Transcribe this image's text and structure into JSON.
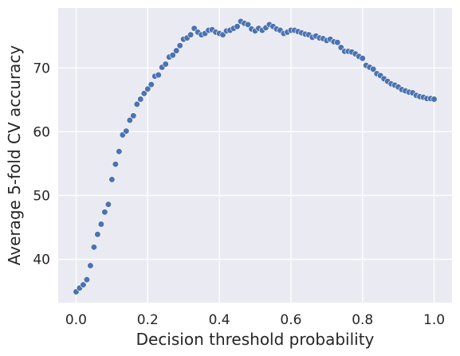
{
  "chart_data": {
    "type": "scatter",
    "title": "",
    "xlabel": "Decision threshold probability",
    "ylabel": "Average 5-fold CV accuracy",
    "xlim": [
      -0.05,
      1.05
    ],
    "ylim": [
      33.2,
      79.4
    ],
    "xticks": [
      0.0,
      0.2,
      0.4,
      0.6,
      0.8,
      1.0
    ],
    "xtick_labels": [
      "0.0",
      "0.2",
      "0.4",
      "0.6",
      "0.8",
      "1.0"
    ],
    "yticks": [
      40,
      50,
      60,
      70
    ],
    "ytick_labels": [
      "40",
      "50",
      "60",
      "70"
    ],
    "grid": true,
    "legend": "none",
    "colors": {
      "background": "#eaeaf2",
      "grid": "#ffffff",
      "marker": "#4c72b0"
    },
    "x": [
      0.0,
      0.01,
      0.02,
      0.03,
      0.04,
      0.05,
      0.06,
      0.07,
      0.08,
      0.09,
      0.1,
      0.11,
      0.12,
      0.13,
      0.14,
      0.15,
      0.16,
      0.17,
      0.18,
      0.19,
      0.2,
      0.21,
      0.22,
      0.23,
      0.24,
      0.25,
      0.26,
      0.27,
      0.28,
      0.29,
      0.3,
      0.31,
      0.32,
      0.33,
      0.34,
      0.35,
      0.36,
      0.37,
      0.38,
      0.39,
      0.4,
      0.41,
      0.42,
      0.43,
      0.44,
      0.45,
      0.46,
      0.47,
      0.48,
      0.49,
      0.5,
      0.51,
      0.52,
      0.53,
      0.54,
      0.55,
      0.56,
      0.57,
      0.58,
      0.59,
      0.6,
      0.61,
      0.62,
      0.63,
      0.64,
      0.65,
      0.66,
      0.67,
      0.68,
      0.69,
      0.7,
      0.71,
      0.72,
      0.73,
      0.74,
      0.75,
      0.76,
      0.77,
      0.78,
      0.79,
      0.8,
      0.81,
      0.82,
      0.83,
      0.84,
      0.85,
      0.86,
      0.87,
      0.88,
      0.89,
      0.9,
      0.91,
      0.92,
      0.93,
      0.94,
      0.95,
      0.96,
      0.97,
      0.98,
      0.99,
      1.0
    ],
    "y": [
      34.9,
      35.5,
      36.0,
      36.8,
      39.0,
      41.9,
      43.9,
      45.5,
      47.4,
      48.6,
      52.5,
      54.9,
      56.9,
      59.5,
      60.1,
      61.8,
      62.5,
      64.3,
      65.1,
      66.0,
      66.7,
      67.4,
      68.7,
      68.9,
      70.1,
      70.6,
      71.7,
      72.0,
      72.7,
      73.5,
      74.5,
      74.7,
      75.2,
      76.2,
      75.6,
      75.2,
      75.4,
      75.9,
      76.0,
      75.6,
      75.4,
      75.2,
      75.8,
      75.9,
      76.2,
      76.5,
      77.3,
      77.0,
      76.8,
      76.1,
      75.8,
      76.2,
      75.9,
      76.3,
      76.8,
      76.5,
      76.1,
      75.9,
      75.4,
      75.6,
      75.9,
      75.9,
      75.7,
      75.5,
      75.3,
      75.2,
      74.8,
      75.0,
      74.7,
      74.6,
      74.3,
      74.5,
      74.1,
      74.0,
      73.2,
      72.6,
      72.6,
      72.5,
      72.2,
      71.8,
      71.5,
      70.4,
      70.1,
      69.8,
      69.1,
      68.8,
      68.3,
      67.9,
      67.5,
      67.3,
      67.0,
      66.6,
      66.4,
      66.2,
      66.1,
      65.7,
      65.5,
      65.4,
      65.2,
      65.2,
      65.1
    ]
  }
}
